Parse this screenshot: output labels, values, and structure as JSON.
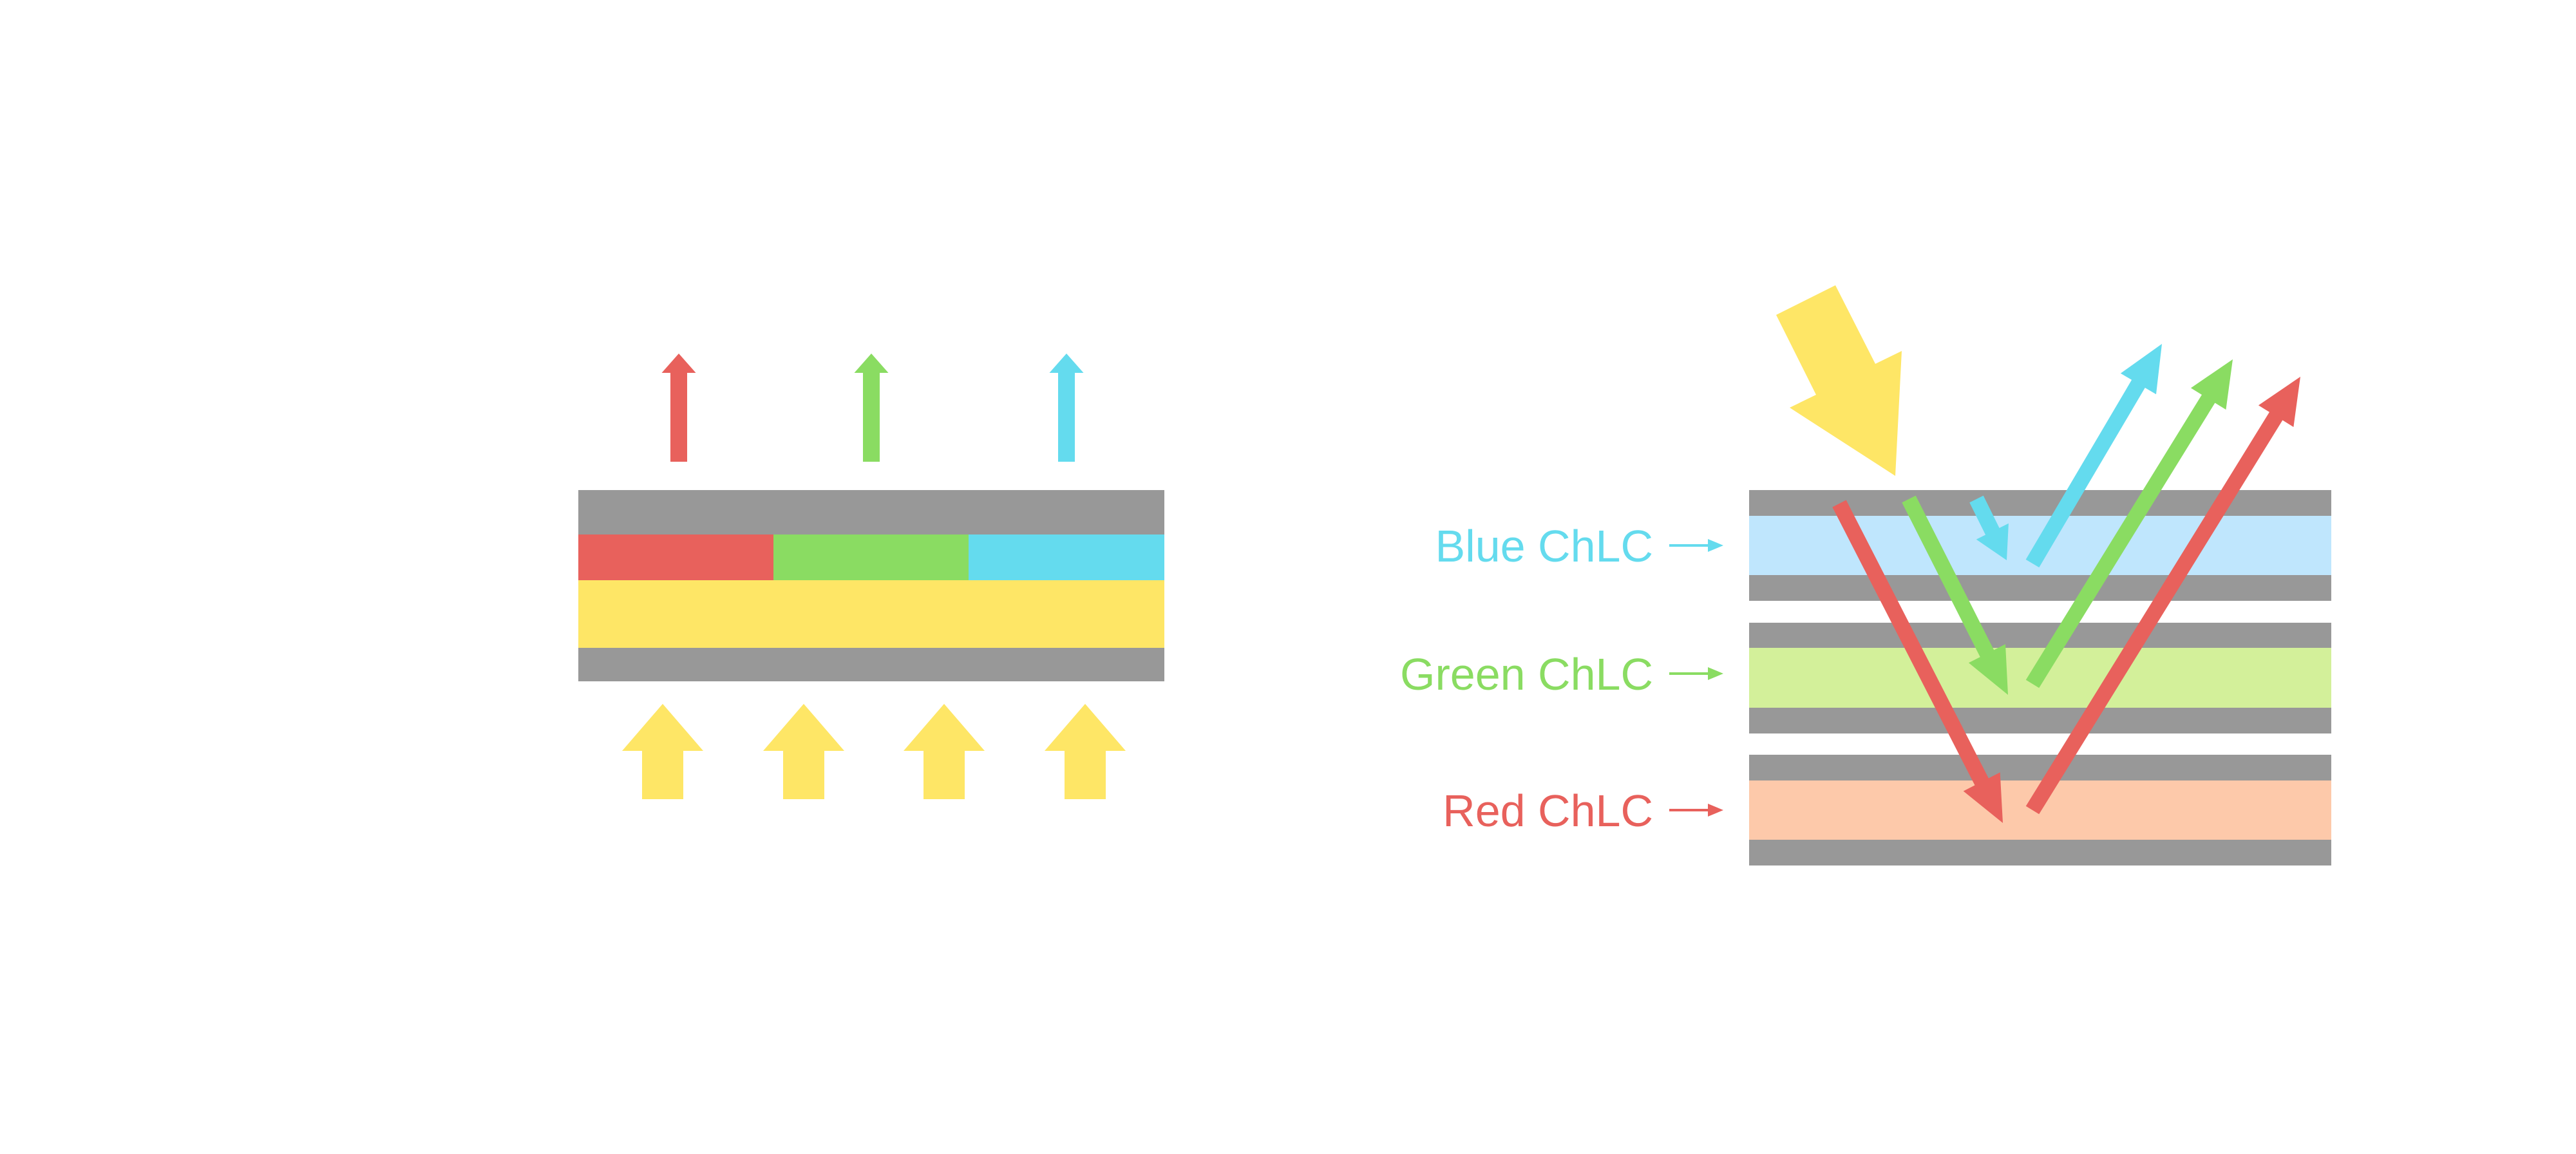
{
  "colors": {
    "electrode": "#989898",
    "red": "#e8615c",
    "green": "#8adc62",
    "blue": "#64dbee",
    "yellow": "#fee666",
    "blue_layer": "#bfe6fd",
    "green_layer": "#d3f09a",
    "red_layer": "#fdc9aa"
  },
  "right_panel": {
    "labels": [
      {
        "text": "Blue ChLC",
        "color": "#64dbee"
      },
      {
        "text": "Green ChLC",
        "color": "#8adc62"
      },
      {
        "text": "Red ChLC",
        "color": "#e8615c"
      }
    ]
  }
}
